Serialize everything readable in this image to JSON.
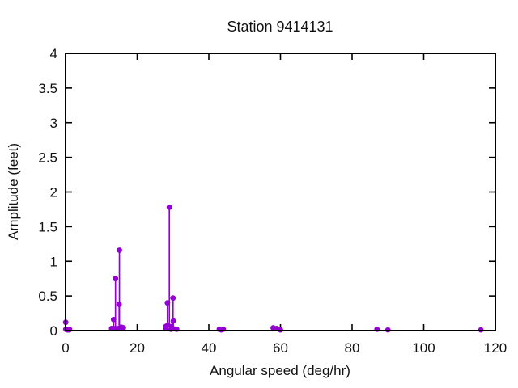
{
  "chart_data": {
    "type": "stem-scatter",
    "title": "Station 9414131",
    "xlabel": "Angular speed (deg/hr)",
    "ylabel": "Amplitude (feet)",
    "xlim": [
      0,
      120
    ],
    "ylim": [
      0,
      4
    ],
    "xticks": [
      0,
      20,
      40,
      60,
      80,
      100,
      120
    ],
    "xtick_labels": [
      "0",
      "20",
      "40",
      "60",
      "80",
      "100",
      "120"
    ],
    "yticks": [
      0,
      0.5,
      1,
      1.5,
      2,
      2.5,
      3,
      3.5,
      4
    ],
    "ytick_labels": [
      "0",
      "0.5",
      "1",
      "1.5",
      "2",
      "2.5",
      "3",
      "3.5",
      "4"
    ],
    "grid": false,
    "legend": "none",
    "marker": "filled-circle",
    "marker_color": "#9400d3",
    "axis_color": "#000000",
    "points": [
      {
        "x": 0.04,
        "y": 0.12
      },
      {
        "x": 0.08,
        "y": 0.02
      },
      {
        "x": 0.54,
        "y": 0.01
      },
      {
        "x": 1.02,
        "y": 0.01
      },
      {
        "x": 1.1,
        "y": 0.02
      },
      {
        "x": 12.85,
        "y": 0.03
      },
      {
        "x": 13.4,
        "y": 0.16
      },
      {
        "x": 13.47,
        "y": 0.03
      },
      {
        "x": 13.94,
        "y": 0.75
      },
      {
        "x": 14.49,
        "y": 0.03
      },
      {
        "x": 14.96,
        "y": 0.38
      },
      {
        "x": 15.04,
        "y": 1.16
      },
      {
        "x": 15.58,
        "y": 0.05
      },
      {
        "x": 16.14,
        "y": 0.04
      },
      {
        "x": 27.9,
        "y": 0.04
      },
      {
        "x": 27.97,
        "y": 0.06
      },
      {
        "x": 28.44,
        "y": 0.4
      },
      {
        "x": 28.51,
        "y": 0.08
      },
      {
        "x": 28.98,
        "y": 1.78
      },
      {
        "x": 29.46,
        "y": 0.02
      },
      {
        "x": 29.53,
        "y": 0.06
      },
      {
        "x": 29.96,
        "y": 0.03
      },
      {
        "x": 30.0,
        "y": 0.47
      },
      {
        "x": 30.08,
        "y": 0.14
      },
      {
        "x": 31.02,
        "y": 0.02
      },
      {
        "x": 42.93,
        "y": 0.02
      },
      {
        "x": 43.48,
        "y": 0.01
      },
      {
        "x": 44.03,
        "y": 0.02
      },
      {
        "x": 57.97,
        "y": 0.04
      },
      {
        "x": 58.98,
        "y": 0.03
      },
      {
        "x": 60.0,
        "y": 0.01
      },
      {
        "x": 86.95,
        "y": 0.02
      },
      {
        "x": 90.0,
        "y": 0.01
      },
      {
        "x": 115.94,
        "y": 0.01
      }
    ]
  }
}
